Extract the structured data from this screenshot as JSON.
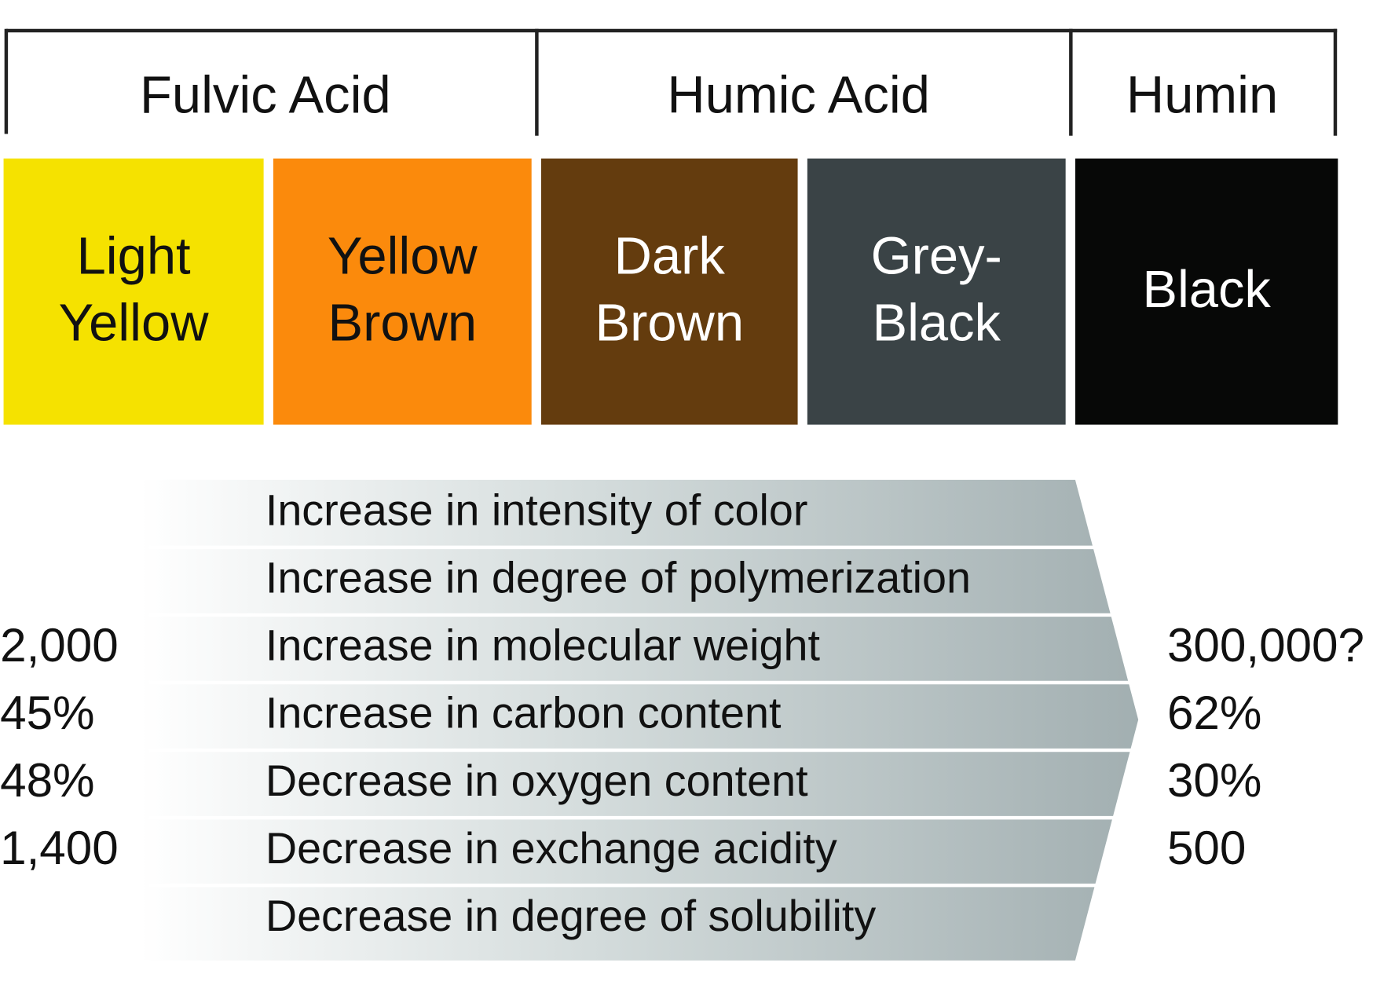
{
  "groups": [
    "Fulvic Acid",
    "Humic Acid",
    "Humin"
  ],
  "colors": [
    {
      "lines": [
        "Light",
        "Yellow"
      ],
      "fill": "#f5e200",
      "ink": "#111111"
    },
    {
      "lines": [
        "Yellow",
        "Brown"
      ],
      "fill": "#fb8a0c",
      "ink": "#111111"
    },
    {
      "lines": [
        "Dark",
        "Brown"
      ],
      "fill": "#643c0e",
      "ink": "#ffffff"
    },
    {
      "lines": [
        "Grey-",
        "Black"
      ],
      "fill": "#3a4346",
      "ink": "#ffffff"
    },
    {
      "lines": [
        "Black"
      ],
      "fill": "#070807",
      "ink": "#ffffff"
    }
  ],
  "rows": [
    {
      "text": "Increase in intensity of color"
    },
    {
      "text": "Increase in degree of polymerization"
    },
    {
      "text": "Increase in molecular weight",
      "left": "2,000",
      "right": "300,000?"
    },
    {
      "text": "Increase in carbon content",
      "left": "45%",
      "right": "62%"
    },
    {
      "text": "Decrease in oxygen content",
      "left": "48%",
      "right": "30%"
    },
    {
      "text": "Decrease in exchange acidity",
      "left": "1,400",
      "right": "500"
    },
    {
      "text": "Decrease in degree of solubility"
    }
  ]
}
